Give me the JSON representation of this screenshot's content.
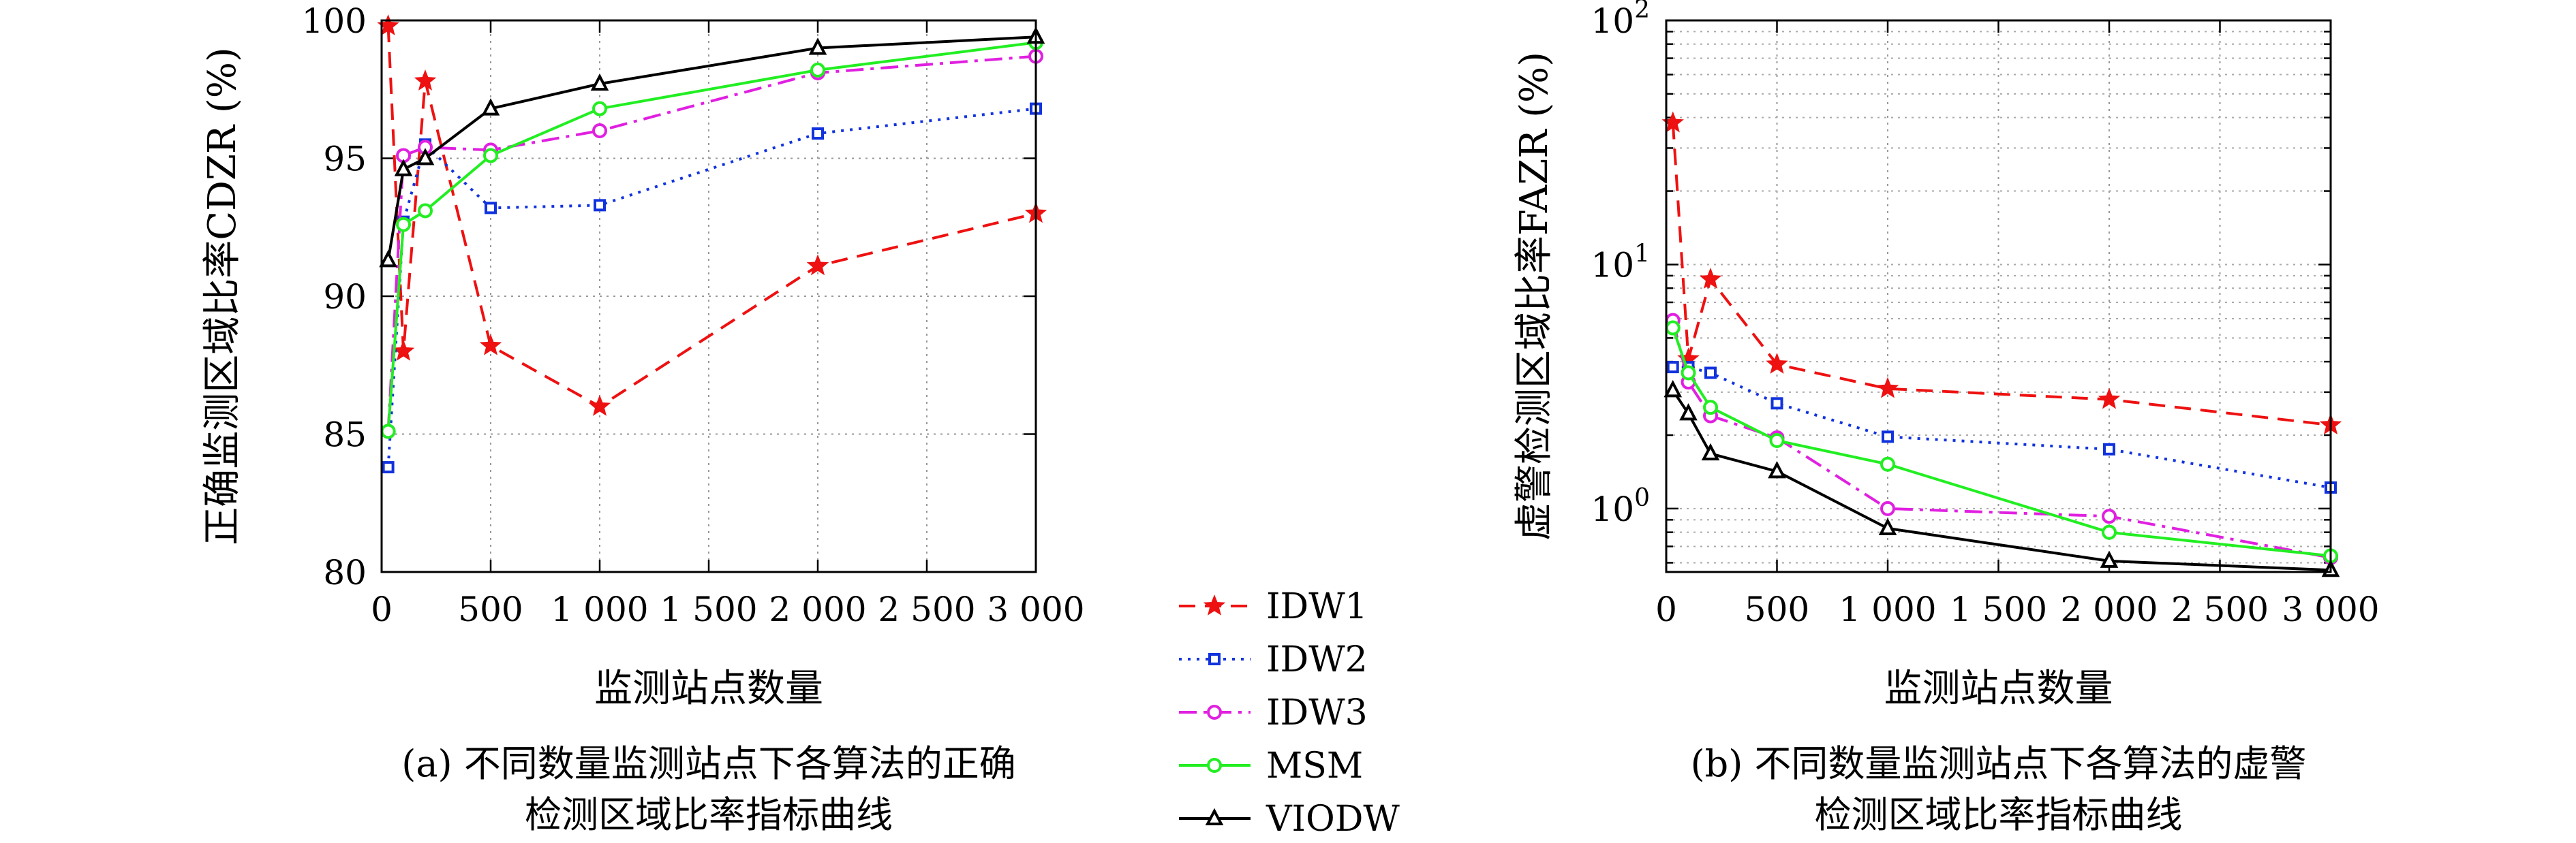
{
  "colors": {
    "IDW1": "#ee1111",
    "IDW2": "#1133dd",
    "IDW3": "#e020e0",
    "MSM": "#22ee22",
    "VIODW": "#000000"
  },
  "legend": [
    "IDW1",
    "IDW2",
    "IDW3",
    "MSM",
    "VIODW"
  ],
  "chart_data": [
    {
      "type": "line",
      "panel": "a",
      "ylabel": "正确监测区域比率CDZR (%)",
      "xlabel": "监测站点数量",
      "caption_line1": "(a) 不同数量监测站点下各算法的正确",
      "caption_line2": "检测区域比率指标曲线",
      "xlim": [
        0,
        3000
      ],
      "ylim": [
        80,
        100
      ],
      "yscale": "linear",
      "grid": true,
      "xticks": [
        0,
        500,
        1000,
        1500,
        2000,
        2500,
        3000
      ],
      "xtick_labels": [
        "0",
        "500",
        "1 000",
        "1 500",
        "2 000",
        "2 500",
        "3 000"
      ],
      "yticks": [
        80,
        85,
        90,
        95,
        100
      ],
      "ytick_labels": [
        "80",
        "85",
        "90",
        "95",
        "100"
      ],
      "series": [
        {
          "name": "IDW1",
          "style": "dashed",
          "marker": "star",
          "x": [
            30,
            100,
            200,
            500,
            1000,
            2000,
            3000
          ],
          "y": [
            99.8,
            88.0,
            97.8,
            88.2,
            86.0,
            91.1,
            93.0
          ]
        },
        {
          "name": "IDW2",
          "style": "dotted",
          "marker": "square",
          "x": [
            30,
            100,
            200,
            500,
            1000,
            2000,
            3000
          ],
          "y": [
            83.8,
            92.7,
            95.5,
            93.2,
            93.3,
            95.9,
            96.8
          ]
        },
        {
          "name": "IDW3",
          "style": "dashdot",
          "marker": "circle",
          "x": [
            30,
            100,
            200,
            500,
            1000,
            2000,
            3000
          ],
          "y": [
            85.1,
            95.1,
            95.4,
            95.3,
            96.0,
            98.1,
            98.7
          ]
        },
        {
          "name": "MSM",
          "style": "solid",
          "marker": "circle",
          "x": [
            30,
            100,
            200,
            500,
            1000,
            2000,
            3000
          ],
          "y": [
            85.1,
            92.6,
            93.1,
            95.1,
            96.8,
            98.2,
            99.2
          ]
        },
        {
          "name": "VIODW",
          "style": "solid",
          "marker": "triangle",
          "x": [
            30,
            100,
            200,
            500,
            1000,
            2000,
            3000
          ],
          "y": [
            91.3,
            94.6,
            95.0,
            96.8,
            97.7,
            99.0,
            99.4
          ]
        }
      ]
    },
    {
      "type": "line",
      "panel": "b",
      "ylabel": "虚警检测区域比率FAZR (%)",
      "xlabel": "监测站点数量",
      "caption_line1": "(b) 不同数量监测站点下各算法的虚警",
      "caption_line2": "检测区域比率指标曲线",
      "xlim": [
        0,
        3000
      ],
      "ylim": [
        0.55,
        100
      ],
      "yscale": "log",
      "grid": true,
      "xticks": [
        0,
        500,
        1000,
        1500,
        2000,
        2500,
        3000
      ],
      "xtick_labels": [
        "0",
        "500",
        "1 000",
        "1 500",
        "2 000",
        "2 500",
        "3 000"
      ],
      "yticks": [
        1,
        10,
        100
      ],
      "ytick_base": "10",
      "ytick_exps": [
        "0",
        "1",
        "2"
      ],
      "series": [
        {
          "name": "IDW1",
          "style": "dashed",
          "marker": "star",
          "x": [
            30,
            100,
            200,
            500,
            1000,
            2000,
            3000
          ],
          "y": [
            38.0,
            4.1,
            8.7,
            3.9,
            3.1,
            2.8,
            2.2
          ]
        },
        {
          "name": "IDW2",
          "style": "dotted",
          "marker": "square",
          "x": [
            30,
            100,
            200,
            500,
            1000,
            2000,
            3000
          ],
          "y": [
            3.8,
            3.8,
            3.6,
            2.7,
            1.97,
            1.75,
            1.22
          ]
        },
        {
          "name": "IDW3",
          "style": "dashdot",
          "marker": "circle",
          "x": [
            30,
            100,
            200,
            500,
            1000,
            2000,
            3000
          ],
          "y": [
            5.9,
            3.3,
            2.4,
            1.95,
            1.0,
            0.93,
            0.63
          ]
        },
        {
          "name": "MSM",
          "style": "solid",
          "marker": "circle",
          "x": [
            30,
            100,
            200,
            500,
            1000,
            2000,
            3000
          ],
          "y": [
            5.5,
            3.6,
            2.6,
            1.9,
            1.52,
            0.8,
            0.64
          ]
        },
        {
          "name": "VIODW",
          "style": "solid",
          "marker": "triangle",
          "x": [
            30,
            100,
            200,
            500,
            1000,
            2000,
            3000
          ],
          "y": [
            3.05,
            2.45,
            1.68,
            1.42,
            0.83,
            0.61,
            0.56
          ]
        }
      ]
    }
  ]
}
